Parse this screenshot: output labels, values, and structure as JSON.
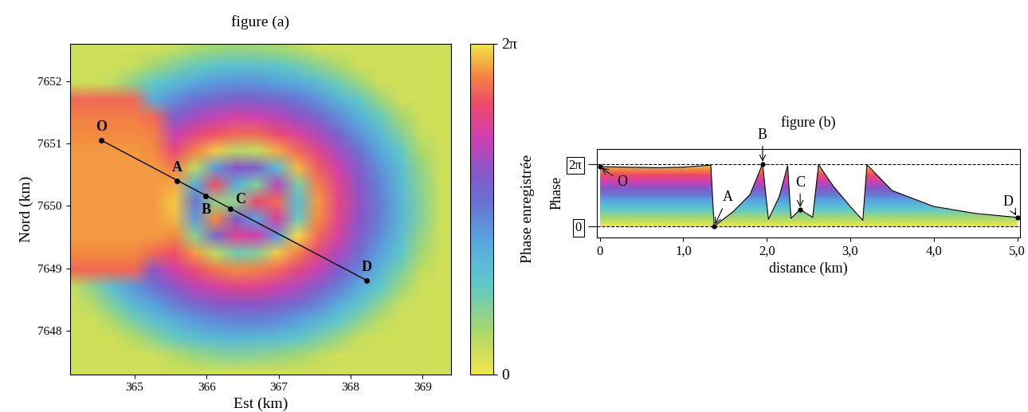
{
  "chart_data": [
    {
      "type": "heatmap",
      "title": "figure (a)",
      "x_label": "Est (km)",
      "y_label": "Nord (km)",
      "xlim": [
        364.1,
        369.4
      ],
      "ylim": [
        7647.3,
        7652.6
      ],
      "xticks": [
        365,
        366,
        367,
        368,
        369
      ],
      "yticks": [
        7648,
        7649,
        7650,
        7651,
        7652
      ],
      "cells_extent": [
        363.7,
        369.4,
        7647.2,
        7652.65
      ],
      "cells": [
        [
          0.4,
          0.4,
          0.4,
          0.4,
          0.4,
          0.4,
          0.5,
          0.8,
          0.95,
          1.05,
          1.0,
          0.9,
          0.7,
          0.4,
          0.4,
          0.4,
          0.4,
          0.4,
          0.4,
          0.4
        ],
        [
          0.4,
          0.4,
          0.4,
          0.4,
          0.5,
          0.9,
          1.3,
          1.6,
          1.8,
          1.9,
          1.9,
          1.8,
          1.5,
          1.2,
          0.8,
          0.4,
          0.4,
          0.4,
          0.4,
          0.4
        ],
        [
          0.4,
          0.4,
          0.4,
          0.6,
          1.2,
          1.7,
          2.1,
          2.5,
          2.7,
          2.8,
          2.8,
          2.6,
          2.4,
          2.0,
          1.5,
          1.0,
          0.4,
          0.4,
          0.4,
          0.4
        ],
        [
          5.4,
          5.4,
          5.4,
          5.4,
          5.4,
          2.4,
          2.9,
          3.3,
          3.5,
          3.7,
          3.6,
          3.5,
          3.2,
          2.8,
          2.2,
          1.7,
          1.0,
          0.4,
          0.4,
          0.4
        ],
        [
          5.6,
          5.6,
          5.6,
          5.6,
          5.6,
          5.4,
          3.7,
          4.1,
          4.4,
          4.6,
          4.5,
          4.3,
          4.0,
          3.5,
          2.9,
          2.3,
          1.6,
          0.9,
          0.4,
          0.4
        ],
        [
          5.7,
          5.7,
          5.7,
          5.7,
          5.7,
          5.6,
          4.4,
          4.9,
          5.2,
          5.4,
          5.4,
          5.1,
          4.7,
          4.2,
          3.5,
          2.8,
          2.1,
          1.3,
          0.5,
          0.4
        ],
        [
          5.8,
          5.8,
          5.8,
          5.8,
          5.8,
          5.7,
          5.0,
          5.6,
          6.1,
          0.7,
          0.5,
          5.9,
          5.4,
          4.8,
          4.1,
          3.3,
          2.5,
          1.7,
          0.8,
          0.4
        ],
        [
          5.8,
          5.8,
          5.8,
          5.8,
          5.8,
          5.8,
          5.6,
          0.6,
          2.7,
          3.9,
          3.6,
          2.0,
          6.0,
          5.3,
          4.5,
          3.7,
          2.8,
          2.0,
          1.1,
          0.4
        ],
        [
          5.8,
          5.8,
          5.8,
          5.8,
          5.8,
          5.8,
          5.9,
          2.4,
          5.2,
          2.3,
          1.3,
          4.3,
          1.4,
          5.6,
          4.8,
          3.9,
          3.0,
          2.1,
          1.2,
          0.4
        ],
        [
          5.8,
          5.8,
          5.8,
          5.8,
          5.8,
          5.8,
          6.1,
          3.2,
          1.1,
          1.1,
          5.1,
          5.4,
          2.1,
          5.8,
          4.9,
          4.0,
          3.1,
          2.2,
          1.3,
          0.4
        ],
        [
          5.8,
          5.8,
          5.8,
          5.8,
          5.8,
          5.8,
          6.0,
          2.7,
          5.7,
          3.7,
          2.6,
          4.7,
          1.6,
          5.7,
          4.8,
          3.9,
          3.1,
          2.2,
          1.3,
          0.4
        ],
        [
          5.8,
          5.8,
          5.8,
          5.8,
          5.8,
          5.8,
          5.7,
          1.2,
          3.5,
          4.8,
          4.5,
          2.7,
          6.2,
          5.4,
          4.6,
          3.7,
          2.9,
          2.0,
          1.1,
          0.4
        ],
        [
          5.7,
          5.7,
          5.7,
          5.7,
          5.7,
          5.4,
          5.2,
          5.8,
          0.6,
          1.5,
          1.3,
          6.1,
          5.6,
          4.9,
          4.2,
          3.4,
          2.6,
          1.8,
          0.9,
          0.4
        ],
        [
          5.4,
          5.4,
          5.4,
          5.4,
          5.4,
          3.9,
          4.6,
          5.1,
          5.5,
          5.7,
          5.6,
          5.4,
          4.9,
          4.4,
          3.7,
          3.0,
          2.2,
          1.4,
          0.6,
          0.4
        ],
        [
          0.4,
          0.5,
          1.2,
          2.0,
          2.7,
          3.3,
          3.9,
          4.3,
          4.6,
          4.8,
          4.8,
          4.5,
          4.2,
          3.7,
          3.1,
          2.4,
          1.7,
          1.0,
          0.4,
          0.4
        ],
        [
          0.4,
          0.4,
          0.7,
          1.4,
          2.1,
          2.6,
          3.1,
          3.5,
          3.8,
          3.9,
          3.9,
          3.7,
          3.4,
          3.0,
          2.4,
          1.8,
          1.2,
          0.5,
          0.4,
          0.4
        ],
        [
          0.4,
          0.4,
          0.4,
          0.8,
          1.4,
          1.9,
          2.3,
          2.7,
          2.9,
          3.0,
          3.0,
          2.9,
          2.6,
          2.2,
          1.7,
          1.2,
          0.6,
          0.4,
          0.4,
          0.4
        ],
        [
          0.4,
          0.4,
          0.4,
          0.4,
          0.7,
          1.2,
          1.6,
          1.9,
          2.1,
          2.2,
          2.1,
          2.0,
          1.8,
          1.4,
          1.0,
          0.5,
          0.4,
          0.4,
          0.4,
          0.4
        ],
        [
          0.4,
          0.4,
          0.4,
          0.4,
          0.4,
          0.4,
          0.7,
          1.0,
          1.2,
          1.3,
          1.2,
          1.1,
          0.9,
          0.6,
          0.4,
          0.4,
          0.4,
          0.4,
          0.4,
          0.4
        ],
        [
          0.4,
          0.4,
          0.4,
          0.4,
          0.4,
          0.4,
          0.4,
          0.4,
          0.4,
          0.4,
          0.4,
          0.4,
          0.4,
          0.4,
          0.4,
          0.4,
          0.4,
          0.4,
          0.4,
          0.4
        ]
      ],
      "colorbar": {
        "label": "Phase enregistrée",
        "range": [
          0,
          6.283
        ],
        "ticks": [
          0,
          {
            "value": 6.283,
            "label": "2π"
          }
        ]
      },
      "points": [
        {
          "label": "O",
          "x": 364.54,
          "y": 7651.05
        },
        {
          "label": "A",
          "x": 365.59,
          "y": 7650.4
        },
        {
          "label": "B",
          "x": 365.99,
          "y": 7650.16
        },
        {
          "label": "C",
          "x": 366.33,
          "y": 7649.96
        },
        {
          "label": "D",
          "x": 368.22,
          "y": 7648.81
        }
      ]
    },
    {
      "type": "area",
      "title": "figure (b)",
      "x_label": "distance (km)",
      "y_label": "Phase",
      "x": [
        0,
        0.3,
        0.7,
        1.0,
        1.33,
        1.37,
        1.6,
        1.8,
        1.95,
        2.02,
        2.15,
        2.25,
        2.29,
        2.4,
        2.55,
        2.62,
        2.8,
        3.0,
        3.15,
        3.2,
        3.5,
        4.0,
        4.5,
        5.0
      ],
      "values": [
        6.0,
        5.95,
        5.9,
        5.95,
        6.15,
        0.0,
        1.5,
        3.2,
        6.283,
        0.7,
        3.0,
        6.1,
        0.8,
        1.7,
        0.9,
        6.2,
        4.0,
        2.0,
        0.6,
        6.2,
        3.6,
        2.0,
        1.3,
        0.9
      ],
      "xlim": [
        -0.03,
        5.03
      ],
      "ylim": [
        -1.1,
        7.8
      ],
      "xticks": [
        0,
        {
          "value": 1.0,
          "label": "1,0"
        },
        {
          "value": 2.0,
          "label": "2,0"
        },
        {
          "value": 3.0,
          "label": "3,0"
        },
        {
          "value": 4.0,
          "label": "4,0"
        },
        {
          "value": 5.0,
          "label": "5,0"
        }
      ],
      "yticks": [
        0,
        {
          "value": 6.283,
          "label": "2π"
        }
      ],
      "grid": "y",
      "points": [
        {
          "label": "O",
          "x": 0,
          "y": 6.0
        },
        {
          "label": "A",
          "x": 1.37,
          "y": 0.0
        },
        {
          "label": "B",
          "x": 1.95,
          "y": 6.283
        },
        {
          "label": "C",
          "x": 2.4,
          "y": 1.7
        },
        {
          "label": "D",
          "x": 5.0,
          "y": 0.9
        }
      ]
    }
  ]
}
